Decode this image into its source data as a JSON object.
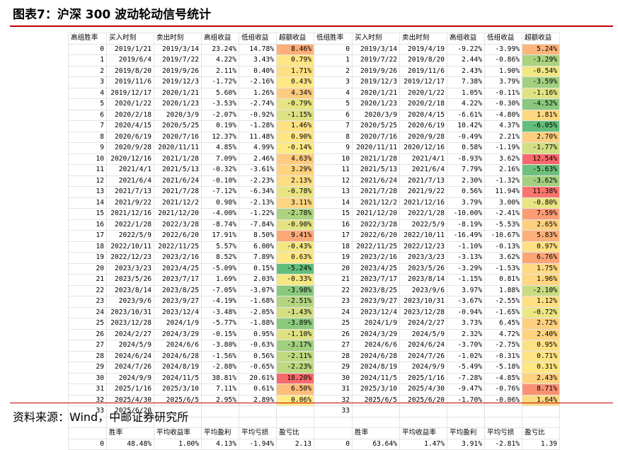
{
  "title": "图表7：沪深 300 波动轮动信号统计",
  "source": "资料来源：Wind，中邮证券研究所",
  "headers": {
    "left": [
      "高组胜率",
      "买入时刻",
      "卖出时刻",
      "高组收益",
      "低组收益",
      "超额收益"
    ],
    "right": [
      "低组胜率",
      "买入时刻",
      "卖出时刻",
      "高组收益",
      "低组收益",
      "超额收益"
    ]
  },
  "left_rows": [
    [
      "0",
      "2019/1/21",
      "2019/3/14",
      "23.24%",
      "14.78%",
      "8.46%"
    ],
    [
      "1",
      "2019/6/4",
      "2019/7/22",
      "4.22%",
      "3.43%",
      "0.79%"
    ],
    [
      "2",
      "2019/8/20",
      "2019/9/26",
      "2.11%",
      "0.40%",
      "1.71%"
    ],
    [
      "3",
      "2019/11/6",
      "2019/12/3",
      "-1.72%",
      "-2.16%",
      "0.43%"
    ],
    [
      "4",
      "2019/12/17",
      "2020/1/21",
      "5.60%",
      "1.26%",
      "4.34%"
    ],
    [
      "5",
      "2020/1/22",
      "2020/1/23",
      "-3.53%",
      "-2.74%",
      "-0.79%"
    ],
    [
      "6",
      "2020/2/18",
      "2020/3/9",
      "-2.07%",
      "-0.92%",
      "-1.15%"
    ],
    [
      "7",
      "2020/4/15",
      "2020/5/25",
      "0.19%",
      "-1.28%",
      "1.46%"
    ],
    [
      "8",
      "2020/6/19",
      "2020/7/16",
      "12.37%",
      "11.48%",
      "0.90%"
    ],
    [
      "9",
      "2020/9/28",
      "2020/11/11",
      "4.85%",
      "4.99%",
      "-0.14%"
    ],
    [
      "10",
      "2020/12/16",
      "2021/1/28",
      "7.09%",
      "2.46%",
      "4.63%"
    ],
    [
      "11",
      "2021/4/1",
      "2021/5/13",
      "-0.32%",
      "-3.61%",
      "3.29%"
    ],
    [
      "12",
      "2021/6/4",
      "2021/6/24",
      "-0.10%",
      "-2.23%",
      "2.13%"
    ],
    [
      "13",
      "2021/7/13",
      "2021/7/28",
      "-7.12%",
      "-6.34%",
      "-0.78%"
    ],
    [
      "14",
      "2021/9/22",
      "2021/12/2",
      "0.98%",
      "-2.13%",
      "3.11%"
    ],
    [
      "15",
      "2021/12/16",
      "2021/12/20",
      "-4.00%",
      "-1.22%",
      "-2.78%"
    ],
    [
      "16",
      "2022/1/28",
      "2022/3/28",
      "-8.74%",
      "-7.84%",
      "-0.90%"
    ],
    [
      "17",
      "2022/5/9",
      "2022/6/20",
      "17.91%",
      "8.50%",
      "9.41%"
    ],
    [
      "18",
      "2022/10/11",
      "2022/11/25",
      "5.57%",
      "6.00%",
      "-0.43%"
    ],
    [
      "19",
      "2022/12/23",
      "2023/2/16",
      "8.52%",
      "7.89%",
      "0.63%"
    ],
    [
      "20",
      "2023/3/23",
      "2023/4/25",
      "-5.09%",
      "0.15%",
      "-5.24%"
    ],
    [
      "21",
      "2023/5/26",
      "2023/7/17",
      "1.69%",
      "2.03%",
      "-0.33%"
    ],
    [
      "22",
      "2023/8/14",
      "2023/8/25",
      "-7.05%",
      "-3.07%",
      "-3.98%"
    ],
    [
      "23",
      "2023/9/6",
      "2023/9/27",
      "-4.19%",
      "-1.68%",
      "-2.51%"
    ],
    [
      "24",
      "2023/10/31",
      "2023/12/4",
      "-3.48%",
      "-2.05%",
      "-1.43%"
    ],
    [
      "25",
      "2023/12/28",
      "2024/1/9",
      "-5.77%",
      "-1.88%",
      "-3.89%"
    ],
    [
      "26",
      "2024/2/27",
      "2024/3/29",
      "-0.15%",
      "0.95%",
      "-1.10%"
    ],
    [
      "27",
      "2024/5/9",
      "2024/6/6",
      "-3.80%",
      "-0.63%",
      "-3.17%"
    ],
    [
      "28",
      "2024/6/24",
      "2024/6/28",
      "-1.56%",
      "0.56%",
      "-2.11%"
    ],
    [
      "29",
      "2024/7/26",
      "2024/8/19",
      "-2.88%",
      "-0.65%",
      "-2.23%"
    ],
    [
      "30",
      "2024/9/9",
      "2024/11/5",
      "38.81%",
      "20.61%",
      "18.20%"
    ],
    [
      "31",
      "2025/1/16",
      "2025/3/10",
      "7.11%",
      "0.61%",
      "6.50%"
    ],
    [
      "32",
      "2025/4/30",
      "2025/6/5",
      "2.95%",
      "2.89%",
      "0.06%"
    ],
    [
      "33",
      "2025/6/20",
      "",
      "",
      "",
      ""
    ]
  ],
  "right_rows": [
    [
      "0",
      "2019/3/14",
      "2019/4/19",
      "-9.22%",
      "-3.99%",
      "5.24%"
    ],
    [
      "1",
      "2019/7/22",
      "2019/8/20",
      "2.44%",
      "-0.86%",
      "-3.29%"
    ],
    [
      "2",
      "2019/9/26",
      "2019/11/6",
      "2.43%",
      "1.90%",
      "-0.54%"
    ],
    [
      "3",
      "2019/12/3",
      "2019/12/17",
      "7.38%",
      "3.79%",
      "-3.59%"
    ],
    [
      "4",
      "2020/1/21",
      "2020/1/22",
      "1.05%",
      "-0.11%",
      "-1.16%"
    ],
    [
      "5",
      "2020/1/23",
      "2020/2/18",
      "4.22%",
      "-0.30%",
      "-4.52%"
    ],
    [
      "6",
      "2020/3/9",
      "2020/4/15",
      "-6.61%",
      "-4.80%",
      "1.81%"
    ],
    [
      "7",
      "2020/5/25",
      "2020/6/19",
      "10.42%",
      "4.37%",
      "-6.05%"
    ],
    [
      "8",
      "2020/7/16",
      "2020/9/28",
      "-0.49%",
      "2.21%",
      "2.70%"
    ],
    [
      "9",
      "2020/11/11",
      "2020/12/16",
      "0.58%",
      "-1.19%",
      "-1.77%"
    ],
    [
      "10",
      "2021/1/28",
      "2021/4/1",
      "-8.93%",
      "3.62%",
      "12.54%"
    ],
    [
      "11",
      "2021/5/13",
      "2021/6/4",
      "7.79%",
      "2.16%",
      "-5.63%"
    ],
    [
      "12",
      "2021/6/24",
      "2021/7/13",
      "2.30%",
      "-1.32%",
      "-3.62%"
    ],
    [
      "13",
      "2021/7/28",
      "2021/9/22",
      "0.56%",
      "11.94%",
      "11.38%"
    ],
    [
      "14",
      "2021/12/2",
      "2021/12/16",
      "3.79%",
      "3.00%",
      "-0.80%"
    ],
    [
      "15",
      "2021/12/20",
      "2022/1/28",
      "-10.00%",
      "-2.41%",
      "7.59%"
    ],
    [
      "16",
      "2022/3/28",
      "2022/5/9",
      "-8.19%",
      "-5.53%",
      "2.65%"
    ],
    [
      "17",
      "2022/6/20",
      "2022/10/11",
      "-16.49%",
      "-10.67%",
      "5.83%"
    ],
    [
      "18",
      "2022/11/25",
      "2022/12/23",
      "-1.10%",
      "-0.13%",
      "0.97%"
    ],
    [
      "19",
      "2023/2/16",
      "2023/3/23",
      "-3.13%",
      "3.62%",
      "6.76%"
    ],
    [
      "20",
      "2023/4/25",
      "2023/5/26",
      "-3.29%",
      "-1.53%",
      "1.75%"
    ],
    [
      "21",
      "2023/7/17",
      "2023/8/14",
      "-1.15%",
      "0.81%",
      "1.96%"
    ],
    [
      "22",
      "2023/8/25",
      "2023/9/6",
      "3.97%",
      "1.88%",
      "-2.10%"
    ],
    [
      "23",
      "2023/9/27",
      "2023/10/31",
      "-3.67%",
      "-2.55%",
      "1.12%"
    ],
    [
      "24",
      "2023/12/4",
      "2023/12/28",
      "-0.94%",
      "-1.65%",
      "-0.72%"
    ],
    [
      "25",
      "2024/1/9",
      "2024/2/27",
      "3.73%",
      "6.45%",
      "2.72%"
    ],
    [
      "26",
      "2024/3/29",
      "2024/5/9",
      "2.32%",
      "4.72%",
      "2.40%"
    ],
    [
      "27",
      "2024/6/6",
      "2024/6/24",
      "-3.70%",
      "-2.75%",
      "0.95%"
    ],
    [
      "28",
      "2024/6/28",
      "2024/7/26",
      "-1.02%",
      "-0.31%",
      "0.71%"
    ],
    [
      "29",
      "2024/8/19",
      "2024/9/9",
      "-5.49%",
      "-5.18%",
      "0.31%"
    ],
    [
      "30",
      "2024/11/5",
      "2025/1/16",
      "-7.28%",
      "-4.85%",
      "2.43%"
    ],
    [
      "31",
      "2025/3/10",
      "2025/4/30",
      "-9.47%",
      "-0.76%",
      "8.71%"
    ],
    [
      "32",
      "2025/6/5",
      "2025/6/20",
      "-1.70%",
      "-0.06%",
      "1.64%"
    ],
    [
      "33",
      "",
      "",
      "",
      "",
      ""
    ]
  ],
  "summary_headers": {
    "left": [
      "",
      "胜率",
      "平均收益率",
      "平均盈利",
      "平均亏损",
      "盈亏比"
    ],
    "right": [
      "",
      "胜率",
      "平均收益率",
      "平均盈利",
      "平均亏损",
      "盈亏比"
    ]
  },
  "summary": {
    "left": [
      "0",
      "48.48%",
      "1.00%",
      "4.13%",
      "-1.94%",
      "2.13"
    ],
    "right": [
      "0",
      "63.64%",
      "1.47%",
      "3.91%",
      "-2.81%",
      "1.39"
    ]
  },
  "scale_colors": {
    "negative": "#63be7b",
    "neutral": "#ffeb84",
    "positive": "#f8696b"
  }
}
